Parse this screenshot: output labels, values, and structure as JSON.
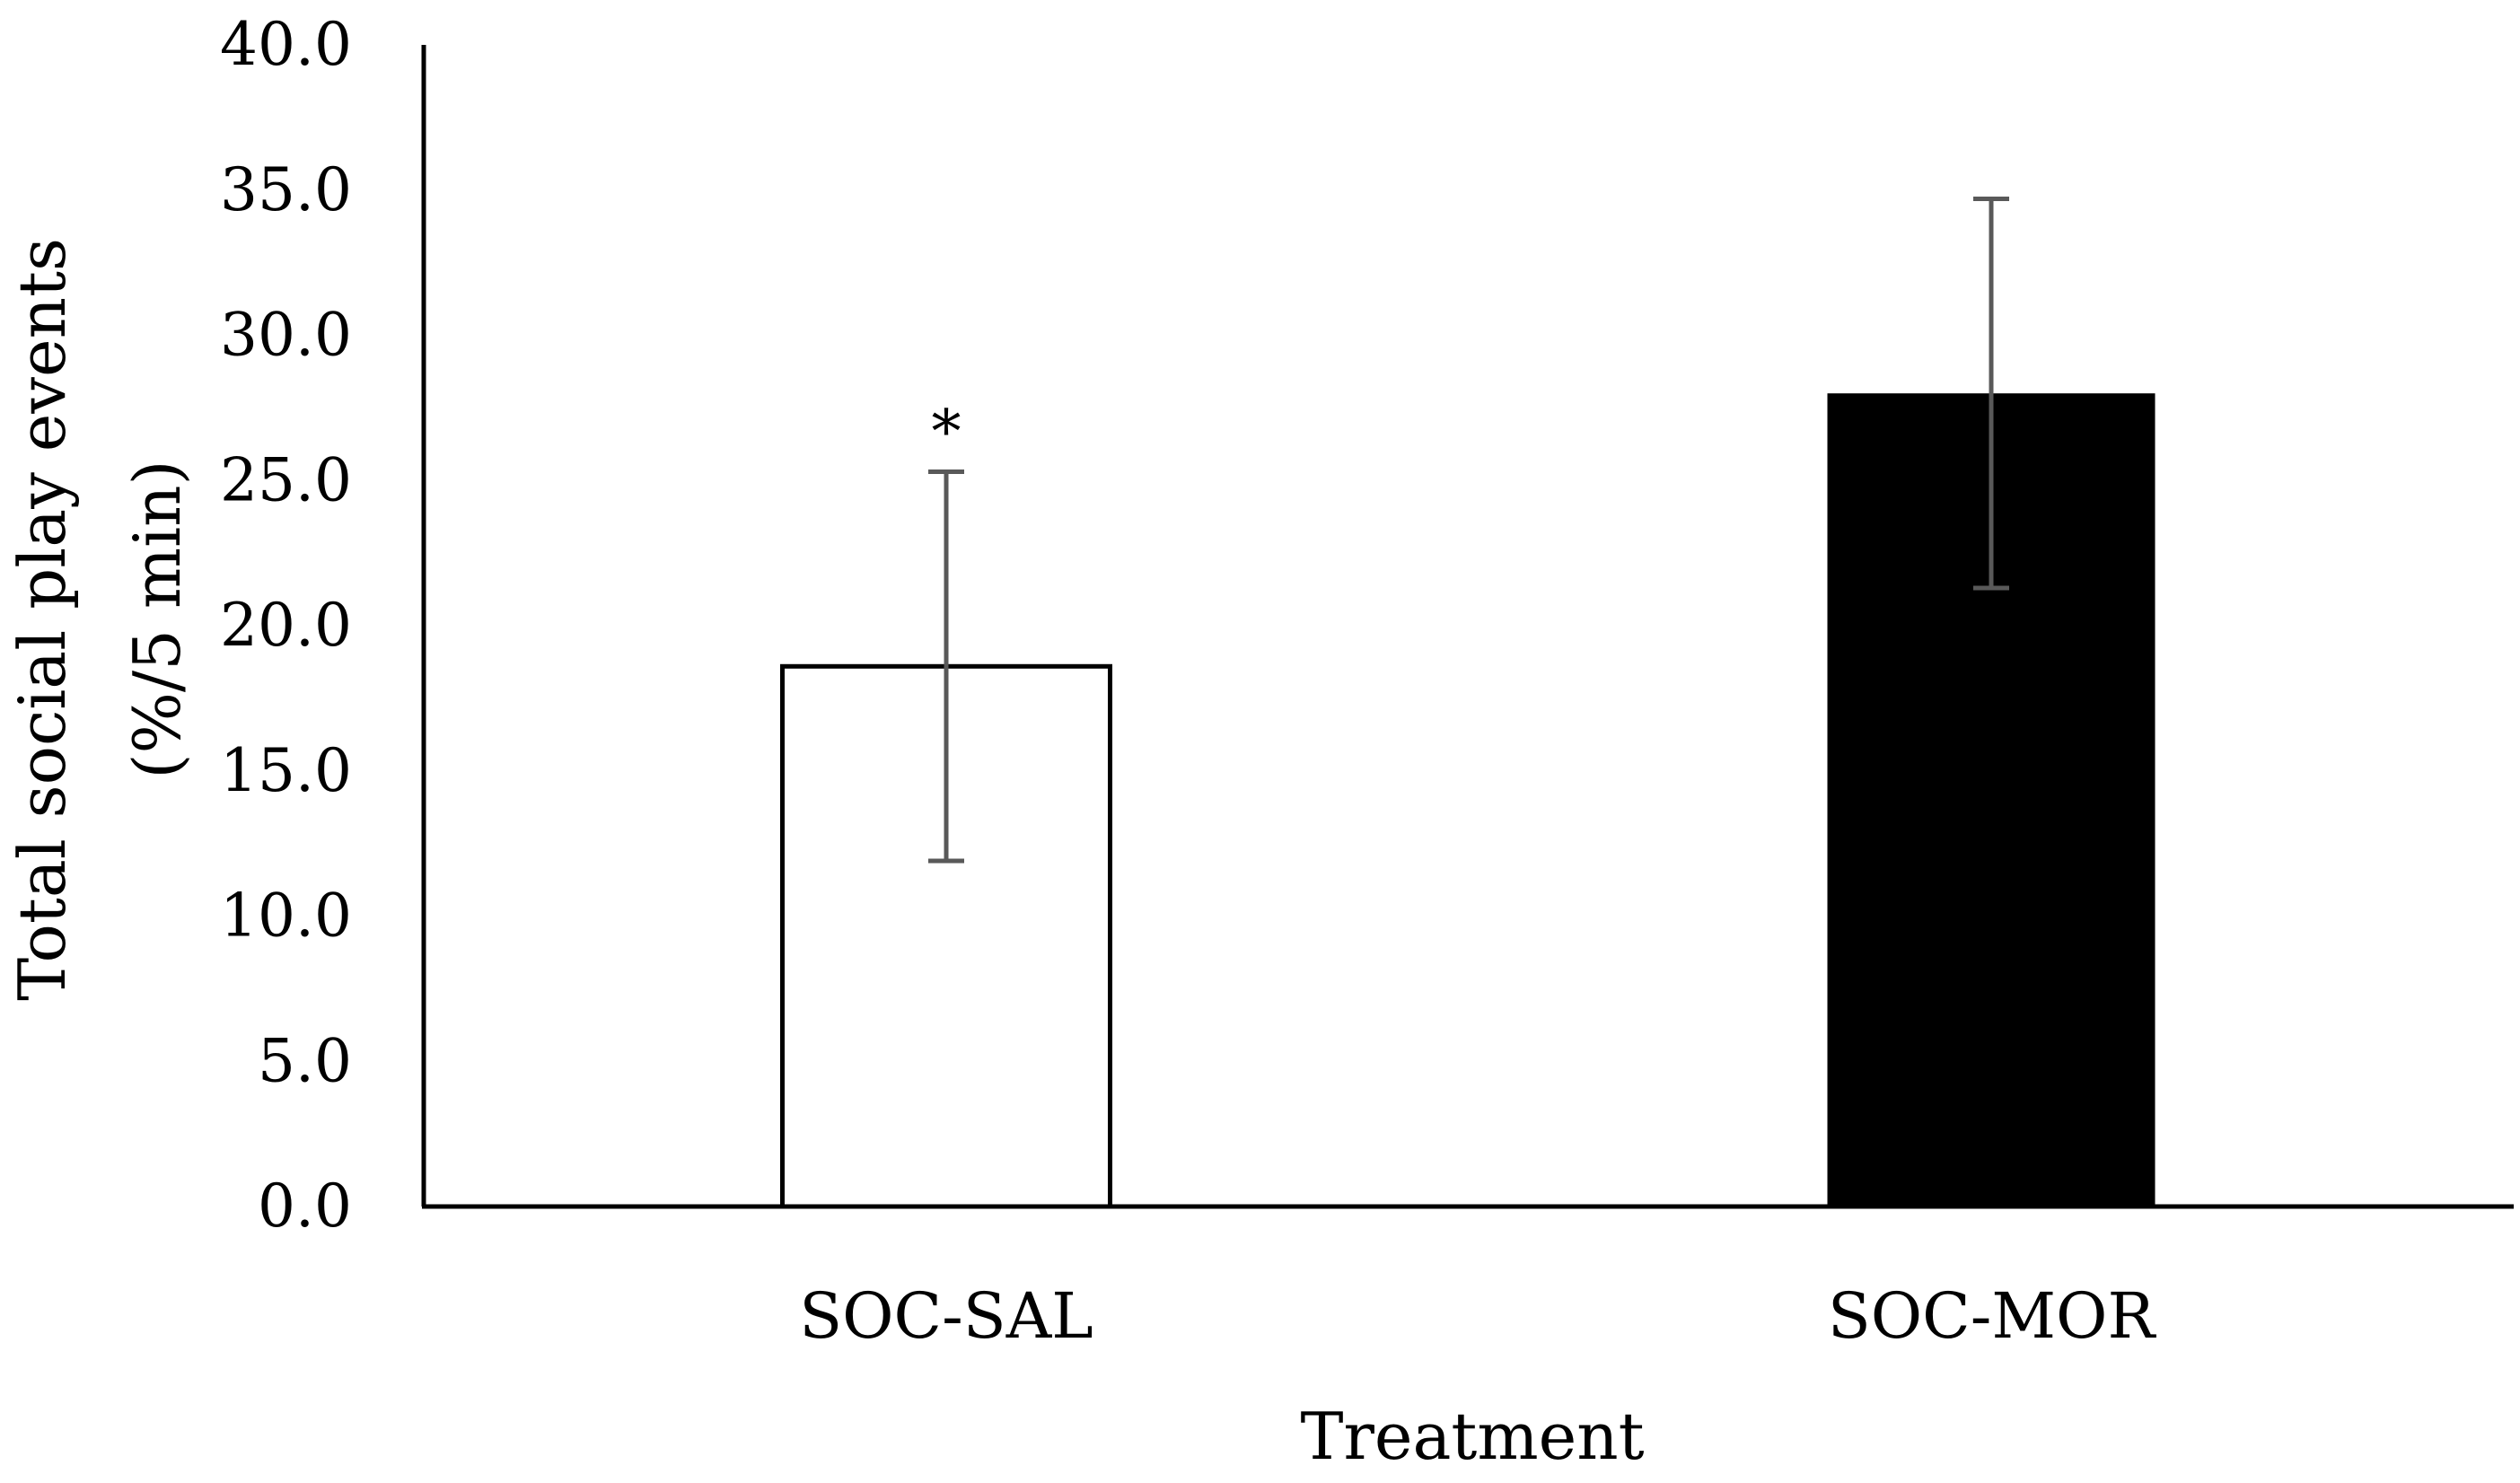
{
  "chart_data": {
    "type": "bar",
    "categories": [
      "SOC-SAL",
      "SOC-MOR"
    ],
    "values": [
      18.6,
      28.0
    ],
    "error_bars": [
      6.7,
      6.7
    ],
    "annotations": [
      "*",
      ""
    ],
    "bar_fill": [
      "#ffffff",
      "#000000"
    ],
    "bar_stroke": "#000000",
    "error_bar_color": "#595959",
    "xlabel": "Treatment",
    "ylabel_lines": [
      "Total social play events",
      "(%/5 min)"
    ],
    "ylim": [
      0,
      40
    ],
    "yticks": [
      "0.0",
      "5.0",
      "10.0",
      "15.0",
      "20.0",
      "25.0",
      "30.0",
      "35.0",
      "40.0"
    ],
    "grid": false,
    "legend": "none"
  }
}
